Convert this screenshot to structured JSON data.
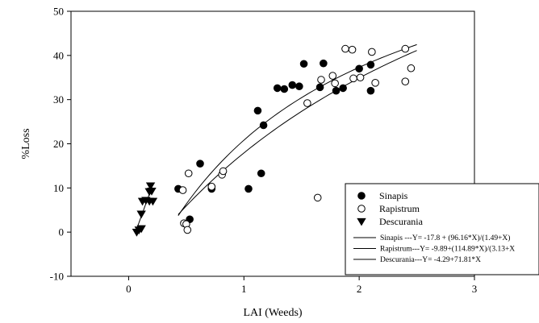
{
  "chart_data": {
    "type": "scatter",
    "title": "",
    "xlabel": "LAI (Weeds)",
    "ylabel": "%Loss",
    "xlim": [
      -0.5,
      3
    ],
    "ylim": [
      -10,
      50
    ],
    "x_ticks": [
      "0",
      "1",
      "2",
      "3"
    ],
    "y_ticks": [
      "-10",
      "0",
      "10",
      "20",
      "30",
      "40",
      "50"
    ],
    "grid": false,
    "legend_position": "bottom-right",
    "series": [
      {
        "name": "Sinapis",
        "marker": "filled-circle",
        "color": "#000000",
        "points": [
          [
            0.43,
            9.8
          ],
          [
            0.53,
            2.9
          ],
          [
            0.62,
            15.5
          ],
          [
            0.72,
            9.8
          ],
          [
            1.04,
            9.8
          ],
          [
            1.12,
            27.5
          ],
          [
            1.15,
            13.3
          ],
          [
            1.17,
            24.2
          ],
          [
            1.29,
            32.6
          ],
          [
            1.35,
            32.4
          ],
          [
            1.42,
            33.3
          ],
          [
            1.48,
            33.0
          ],
          [
            1.52,
            38.1
          ],
          [
            1.66,
            32.8
          ],
          [
            1.69,
            38.2
          ],
          [
            1.8,
            32.0
          ],
          [
            1.86,
            32.6
          ],
          [
            2.0,
            37.0
          ],
          [
            2.1,
            32.0
          ],
          [
            2.1,
            37.9
          ]
        ]
      },
      {
        "name": "Rapistrum",
        "marker": "open-circle",
        "color": "#000000",
        "points": [
          [
            0.47,
            9.5
          ],
          [
            0.48,
            2.0
          ],
          [
            0.5,
            1.8
          ],
          [
            0.51,
            0.5
          ],
          [
            0.52,
            13.3
          ],
          [
            0.72,
            10.3
          ],
          [
            0.81,
            13.0
          ],
          [
            0.82,
            13.8
          ],
          [
            1.55,
            29.2
          ],
          [
            1.64,
            7.8
          ],
          [
            1.67,
            34.5
          ],
          [
            1.77,
            35.4
          ],
          [
            1.79,
            33.7
          ],
          [
            1.88,
            41.5
          ],
          [
            1.94,
            41.3
          ],
          [
            1.95,
            34.8
          ],
          [
            2.01,
            35.0
          ],
          [
            2.11,
            40.8
          ],
          [
            2.14,
            33.8
          ],
          [
            2.4,
            41.5
          ],
          [
            2.4,
            34.1
          ],
          [
            2.45,
            37.1
          ]
        ]
      },
      {
        "name": "Descurania",
        "marker": "filled-triangle-down",
        "color": "#000000",
        "points": [
          [
            0.07,
            0.0
          ],
          [
            0.09,
            0.5
          ],
          [
            0.11,
            0.8
          ],
          [
            0.11,
            4.1
          ],
          [
            0.12,
            7.0
          ],
          [
            0.15,
            7.2
          ],
          [
            0.18,
            7.0
          ],
          [
            0.18,
            9.2
          ],
          [
            0.19,
            10.5
          ],
          [
            0.2,
            9.3
          ],
          [
            0.21,
            7.0
          ]
        ]
      }
    ],
    "fit_curves": [
      {
        "label": "Sinapis ---Y= -17.8 + (96.16*X)/(1.49+X)",
        "a": -17.8,
        "b": 96.16,
        "c": 1.49,
        "x_range": [
          0.43,
          2.5
        ]
      },
      {
        "label": "Rapistrum---Y= -9.89+(114.89*X)/(3.13+X",
        "a": -9.89,
        "b": 114.89,
        "c": 3.13,
        "x_range": [
          0.43,
          2.5
        ]
      },
      {
        "label": "Descurania---Y= -4.29+71.81*X",
        "intercept": -4.29,
        "slope": 71.81,
        "x_range": [
          0.06,
          0.21
        ]
      }
    ]
  }
}
